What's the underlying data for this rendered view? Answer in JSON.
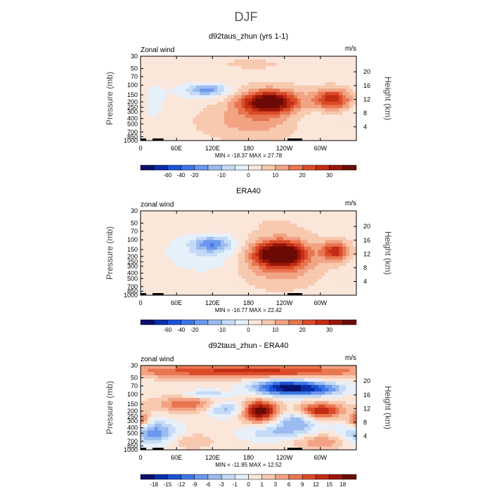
{
  "figure": {
    "title": "DJF"
  },
  "chart_data": [
    {
      "type": "heatmap",
      "title": "d92taus_zhun (yrs 1-1)",
      "left_label": "Zonal wind",
      "right_label": "m/s",
      "xlabel": "",
      "ylabel": "Pressure (mb)",
      "y2label": "Height (km)",
      "x_ticks": [
        "0",
        "60E",
        "120E",
        "180",
        "120W",
        "60W"
      ],
      "x_tick_values": [
        0,
        60,
        120,
        180,
        240,
        300
      ],
      "xlim": [
        0,
        360
      ],
      "y_ticks": [
        "30",
        "50",
        "70",
        "100",
        "150",
        "200",
        "250",
        "300",
        "400",
        "500",
        "700",
        "850",
        "1000"
      ],
      "y_tick_values": [
        30,
        50,
        70,
        100,
        150,
        200,
        250,
        300,
        400,
        500,
        700,
        850,
        1000
      ],
      "ylim": [
        1000,
        30
      ],
      "y2_ticks": [
        "4",
        "8",
        "12",
        "16",
        "20"
      ],
      "y2_tick_values": [
        4,
        8,
        12,
        16,
        20
      ],
      "stats": "MIN = -18.37   MAX =  27.78",
      "colorbar": {
        "labels": [
          "-60",
          "-40",
          "-20",
          "-10",
          "0",
          "10",
          "20",
          "30"
        ],
        "colors": [
          "#08106b",
          "#0a2ea8",
          "#1c52d6",
          "#3c76e6",
          "#6b98ec",
          "#9bbcf0",
          "#c4daf6",
          "#e6f0fb",
          "#fbe6da",
          "#f7c9ae",
          "#f2a384",
          "#e87650",
          "#db4b28",
          "#c22c14",
          "#9a160a",
          "#6b0a05"
        ],
        "label_after_index": [
          1,
          2,
          3,
          5,
          7,
          9,
          11,
          13
        ]
      },
      "features": [
        {
          "lon": 110,
          "p": 120,
          "amp": -10,
          "slon": 22,
          "slogp": 0.07
        },
        {
          "lon": 110,
          "p": 130,
          "amp": -4,
          "slon": 38,
          "slogp": 0.12
        },
        {
          "lon": 215,
          "p": 200,
          "amp": 26,
          "slon": 30,
          "slogp": 0.13
        },
        {
          "lon": 210,
          "p": 300,
          "amp": 7,
          "slon": 55,
          "slogp": 0.3
        },
        {
          "lon": 320,
          "p": 180,
          "amp": 18,
          "slon": 22,
          "slogp": 0.13
        },
        {
          "lon": 20,
          "p": 200,
          "amp": -3,
          "slon": 15,
          "slogp": 0.25
        },
        {
          "lon": 160,
          "p": 500,
          "amp": 3,
          "slon": 60,
          "slogp": 0.22
        },
        {
          "lon": 280,
          "p": 400,
          "amp": -3,
          "slon": 35,
          "slogp": 0.18
        },
        {
          "lon": 180,
          "p": 40,
          "amp": 2,
          "slon": 120,
          "slogp": 0.18
        }
      ],
      "base": 1.5
    },
    {
      "type": "heatmap",
      "title": "ERA40",
      "left_label": "zonal wind",
      "right_label": "m/s",
      "xlabel": "",
      "ylabel": "Pressure (mb)",
      "y2label": "Height (km)",
      "x_ticks": [
        "0",
        "60E",
        "120E",
        "180",
        "120W",
        "60W"
      ],
      "x_tick_values": [
        0,
        60,
        120,
        180,
        240,
        300
      ],
      "xlim": [
        0,
        360
      ],
      "y_ticks": [
        "30",
        "50",
        "70",
        "100",
        "150",
        "200",
        "250",
        "300",
        "400",
        "500",
        "700",
        "850",
        "1000"
      ],
      "y_tick_values": [
        30,
        50,
        70,
        100,
        150,
        200,
        250,
        300,
        400,
        500,
        700,
        850,
        1000
      ],
      "ylim": [
        1000,
        30
      ],
      "y2_ticks": [
        "4",
        "8",
        "12",
        "16",
        "20"
      ],
      "y2_tick_values": [
        4,
        8,
        12,
        16,
        20
      ],
      "stats": "MIN = -16.77   MAX =  22.42",
      "colorbar": {
        "labels": [
          "-60",
          "-40",
          "-20",
          "-10",
          "0",
          "10",
          "20",
          "30"
        ],
        "colors": [
          "#08106b",
          "#0a2ea8",
          "#1c52d6",
          "#3c76e6",
          "#6b98ec",
          "#9bbcf0",
          "#c4daf6",
          "#e6f0fb",
          "#fbe6da",
          "#f7c9ae",
          "#f2a384",
          "#e87650",
          "#db4b28",
          "#c22c14",
          "#9a160a",
          "#6b0a05"
        ],
        "label_after_index": [
          1,
          2,
          3,
          5,
          7,
          9,
          11,
          13
        ]
      },
      "features": [
        {
          "lon": 120,
          "p": 120,
          "amp": -10,
          "slon": 22,
          "slogp": 0.09
        },
        {
          "lon": 110,
          "p": 170,
          "amp": -4,
          "slon": 48,
          "slogp": 0.25
        },
        {
          "lon": 232,
          "p": 180,
          "amp": 21,
          "slon": 28,
          "slogp": 0.15
        },
        {
          "lon": 232,
          "p": 230,
          "amp": 8,
          "slon": 45,
          "slogp": 0.3
        },
        {
          "lon": 325,
          "p": 160,
          "amp": 14,
          "slon": 16,
          "slogp": 0.12
        },
        {
          "lon": 180,
          "p": 40,
          "amp": 1,
          "slon": 120,
          "slogp": 0.15
        }
      ],
      "base": 1.5
    },
    {
      "type": "heatmap",
      "title": "d92taus_zhun - ERA40",
      "left_label": "zonal wind",
      "right_label": "m/s",
      "xlabel": "",
      "ylabel": "Pressure (mb)",
      "y2label": "Height (km)",
      "x_ticks": [
        "0",
        "60E",
        "120E",
        "180",
        "120W",
        "60W"
      ],
      "x_tick_values": [
        0,
        60,
        120,
        180,
        240,
        300
      ],
      "xlim": [
        0,
        360
      ],
      "y_ticks": [
        "30",
        "50",
        "70",
        "100",
        "150",
        "200",
        "250",
        "300",
        "400",
        "500",
        "700",
        "850",
        "1000"
      ],
      "y_tick_values": [
        30,
        50,
        70,
        100,
        150,
        200,
        250,
        300,
        400,
        500,
        700,
        850,
        1000
      ],
      "ylim": [
        1000,
        30
      ],
      "y2_ticks": [
        "4",
        "8",
        "12",
        "16",
        "20"
      ],
      "y2_tick_values": [
        4,
        8,
        12,
        16,
        20
      ],
      "stats": "MIN = -11.95   MAX =  12.52",
      "colorbar": {
        "labels": [
          "-18",
          "-15",
          "-12",
          "-9",
          "-6",
          "-3",
          "-1",
          "0",
          "1",
          "3",
          "6",
          "9",
          "12",
          "15",
          "18"
        ],
        "colors": [
          "#08106b",
          "#0a2ea8",
          "#1c52d6",
          "#3c76e6",
          "#6b98ec",
          "#9bbcf0",
          "#c4daf6",
          "#e6f0fb",
          "#fbe6da",
          "#f7c9ae",
          "#f2a384",
          "#e87650",
          "#db4b28",
          "#c22c14",
          "#9a160a",
          "#6b0a05"
        ],
        "label_after_index": [
          0,
          1,
          2,
          3,
          4,
          5,
          6,
          7,
          8,
          9,
          10,
          11,
          12,
          13,
          14
        ]
      },
      "features": [
        {
          "lon": 180,
          "p": 38,
          "amp": 6,
          "slon": 150,
          "slogp": 0.09
        },
        {
          "lon": 240,
          "p": 75,
          "amp": -9,
          "slon": 35,
          "slogp": 0.1
        },
        {
          "lon": 300,
          "p": 80,
          "amp": -5,
          "slon": 30,
          "slogp": 0.08
        },
        {
          "lon": 110,
          "p": 100,
          "amp": -3,
          "slon": 25,
          "slogp": 0.05
        },
        {
          "lon": 80,
          "p": 150,
          "amp": 4,
          "slon": 40,
          "slogp": 0.1
        },
        {
          "lon": 200,
          "p": 200,
          "amp": 9,
          "slon": 20,
          "slogp": 0.13
        },
        {
          "lon": 300,
          "p": 200,
          "amp": 7,
          "slon": 25,
          "slogp": 0.1
        },
        {
          "lon": 140,
          "p": 180,
          "amp": -4,
          "slon": 22,
          "slogp": 0.1
        },
        {
          "lon": 260,
          "p": 300,
          "amp": -4,
          "slon": 25,
          "slogp": 0.12
        },
        {
          "lon": 20,
          "p": 500,
          "amp": -5,
          "slon": 30,
          "slogp": 0.15
        },
        {
          "lon": 230,
          "p": 500,
          "amp": -3,
          "slon": 40,
          "slogp": 0.1
        },
        {
          "lon": 0,
          "p": 300,
          "amp": 5,
          "slon": 10,
          "slogp": 0.1
        },
        {
          "lon": 300,
          "p": 700,
          "amp": 3,
          "slon": 35,
          "slogp": 0.1
        },
        {
          "lon": 80,
          "p": 700,
          "amp": 2,
          "slon": 30,
          "slogp": 0.1
        }
      ],
      "base": 0.5
    }
  ]
}
